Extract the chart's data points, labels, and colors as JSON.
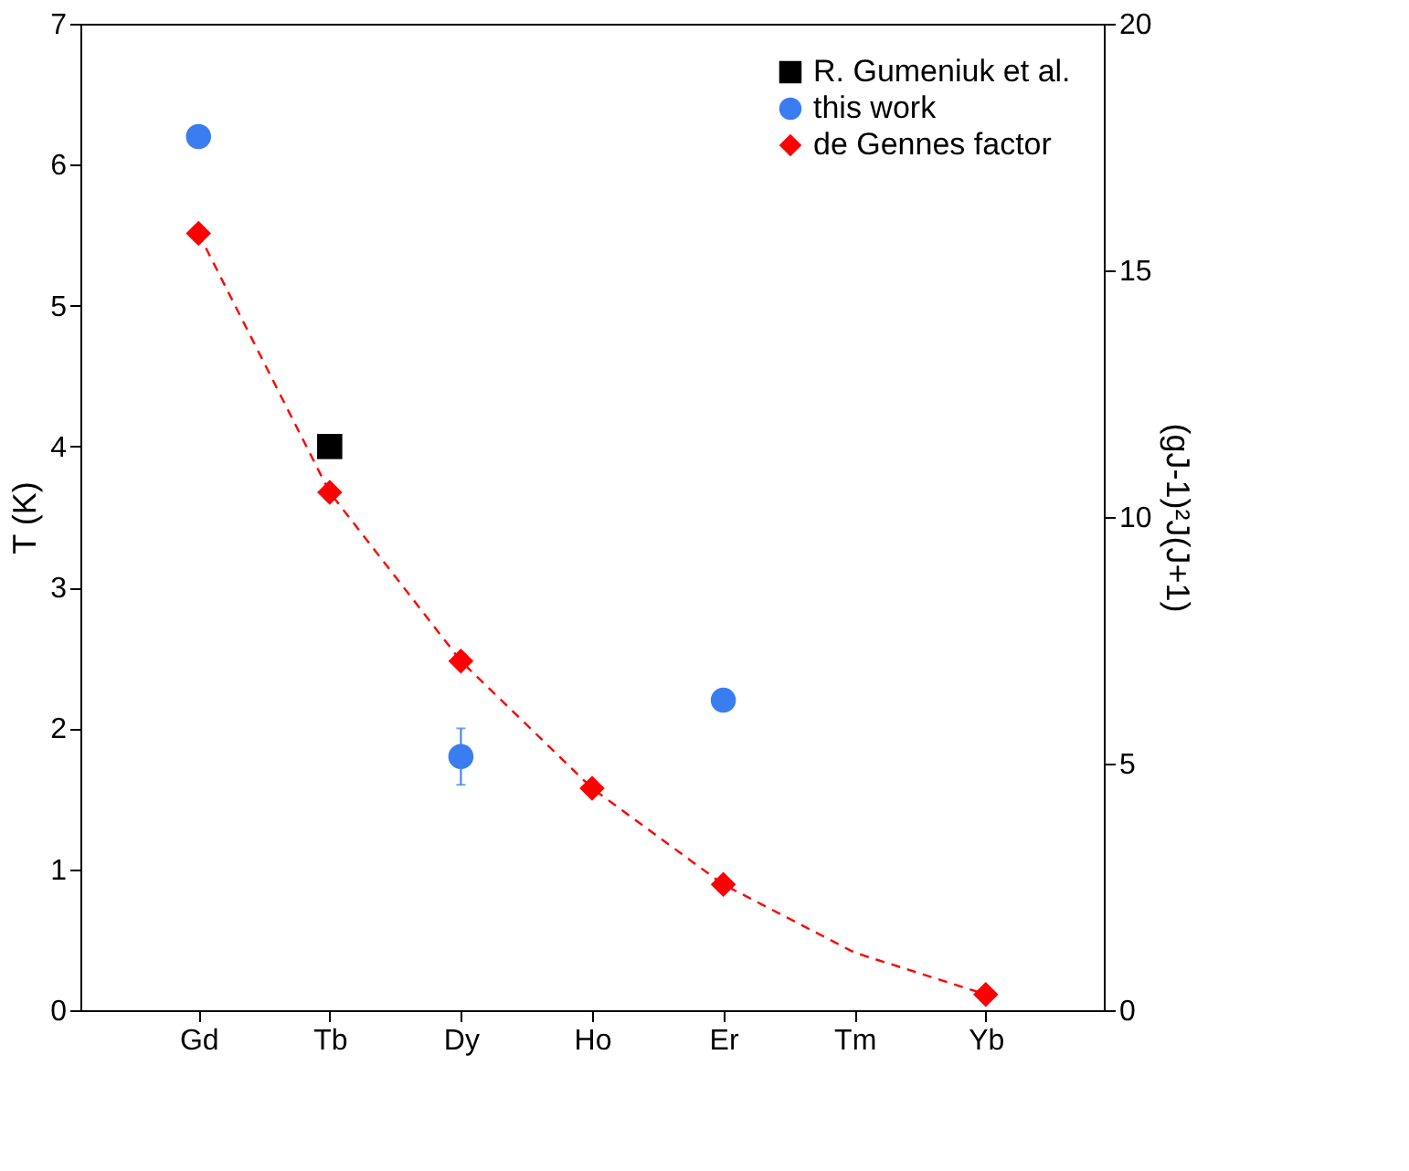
{
  "chart_data": {
    "type": "scatter",
    "categories": [
      "Gd",
      "Tb",
      "Dy",
      "Ho",
      "Er",
      "Tm",
      "Yb"
    ],
    "ylabel": "T (K)",
    "y2label": "(gJ-1)²J(J+1)",
    "ylim": [
      0,
      7
    ],
    "yticks": [
      0,
      1,
      2,
      3,
      4,
      5,
      6,
      7
    ],
    "y2lim": [
      0,
      20
    ],
    "y2ticks": [
      0,
      5,
      10,
      15,
      20
    ],
    "grid": false,
    "legend": "top right",
    "series": [
      {
        "name": "R. Gumeniuk et al.",
        "marker": "square",
        "color": "#000000",
        "values": [
          null,
          4.0,
          null,
          null,
          null,
          null,
          null
        ]
      },
      {
        "name": "this work",
        "marker": "circle",
        "color": "#3a7df0",
        "values": [
          6.2,
          null,
          1.8,
          null,
          2.2,
          null,
          null
        ],
        "errors": [
          null,
          null,
          0.2,
          null,
          null,
          null,
          null
        ]
      },
      {
        "name": "de Gennes factor",
        "marker": "diamond",
        "color": "#ff0000",
        "axis": "y2",
        "values": [
          15.75,
          10.5,
          7.08,
          4.5,
          2.55,
          null,
          0.32
        ]
      },
      {
        "type": "line",
        "line_style": "dashed",
        "color": "#ff0000",
        "axis": "y2",
        "values": [
          15.75,
          10.5,
          7.08,
          4.5,
          2.55,
          1.17,
          0.32
        ]
      }
    ]
  }
}
